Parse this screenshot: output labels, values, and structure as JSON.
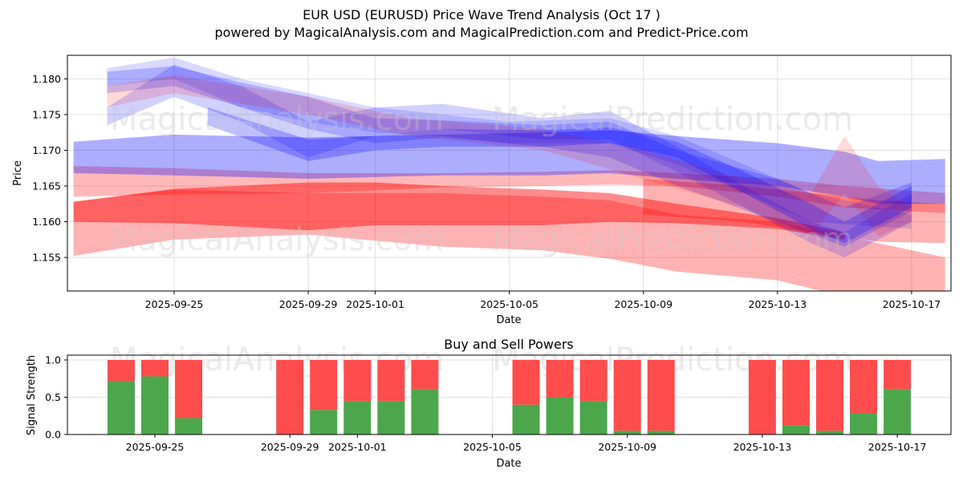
{
  "header": {
    "title": "EUR USD (EURUSD) Price Wave Trend Analysis (Oct 17 )",
    "subtitle": "powered by MagicalAnalysis.com and MagicalPrediction.com and Predict-Price.com"
  },
  "watermarks": [
    "MagicalAnalysis.com",
    "MagicalPrediction.com"
  ],
  "colors": {
    "buy": "#4ca64c",
    "sell": "#ff4c4c",
    "bullish_band": "#0000ff",
    "bearish_band": "#ff0000"
  },
  "chart_data": [
    {
      "type": "area",
      "title": "",
      "xlabel": "Date",
      "ylabel": "Price",
      "ylim": [
        1.1503,
        1.1833
      ],
      "xlim": [
        "2025-09-21",
        "2025-10-18"
      ],
      "grid": true,
      "x_ticks": [
        "2025-09-25",
        "2025-09-29",
        "2025-10-01",
        "2025-10-05",
        "2025-10-09",
        "2025-10-13",
        "2025-10-17"
      ],
      "y_ticks": [
        "1.155",
        "1.160",
        "1.165",
        "1.170",
        "1.175",
        "1.180"
      ],
      "bands": [
        {
          "name": "red-wide-low",
          "color": "red",
          "opacity": 0.3,
          "x": [
            "2025-09-22",
            "2025-09-25",
            "2025-09-29",
            "2025-10-03",
            "2025-10-06",
            "2025-10-08",
            "2025-10-10",
            "2025-10-13",
            "2025-10-15",
            "2025-10-18"
          ],
          "upper": [
            1.1628,
            1.1645,
            1.164,
            1.164,
            1.1635,
            1.163,
            1.161,
            1.16,
            1.158,
            1.155
          ],
          "lower": [
            1.1552,
            1.1575,
            1.1582,
            1.1565,
            1.156,
            1.1548,
            1.153,
            1.1518,
            1.1495,
            1.147
          ]
        },
        {
          "name": "red-main",
          "color": "red",
          "opacity": 0.45,
          "x": [
            "2025-09-22",
            "2025-09-25",
            "2025-09-29",
            "2025-10-01",
            "2025-10-03",
            "2025-10-06",
            "2025-10-08",
            "2025-10-10",
            "2025-10-13",
            "2025-10-15"
          ],
          "upper": [
            1.1628,
            1.1646,
            1.1655,
            1.1655,
            1.165,
            1.1645,
            1.164,
            1.1625,
            1.1605,
            1.1585
          ],
          "lower": [
            1.16,
            1.1598,
            1.1588,
            1.1595,
            1.1595,
            1.1595,
            1.16,
            1.1598,
            1.159,
            1.1575
          ]
        },
        {
          "name": "red-right-low",
          "color": "red",
          "opacity": 0.3,
          "x": [
            "2025-10-09",
            "2025-10-12",
            "2025-10-14",
            "2025-10-16",
            "2025-10-18"
          ],
          "upper": [
            1.166,
            1.165,
            1.164,
            1.163,
            1.1625
          ],
          "lower": [
            1.161,
            1.16,
            1.1585,
            1.1572,
            1.157
          ]
        },
        {
          "name": "purple-band",
          "color": "red",
          "opacity": 0.28,
          "x": [
            "2025-09-22",
            "2025-09-25",
            "2025-09-29",
            "2025-10-03",
            "2025-10-06",
            "2025-10-08",
            "2025-10-10",
            "2025-10-13",
            "2025-10-15",
            "2025-10-18"
          ],
          "upper": [
            1.1678,
            1.1675,
            1.1668,
            1.1668,
            1.167,
            1.1672,
            1.1668,
            1.166,
            1.165,
            1.164
          ],
          "lower": [
            1.1635,
            1.1638,
            1.164,
            1.1648,
            1.165,
            1.1652,
            1.165,
            1.1635,
            1.162,
            1.1612
          ]
        },
        {
          "name": "blue-wide",
          "color": "blue",
          "opacity": 0.32,
          "x": [
            "2025-09-22",
            "2025-09-25",
            "2025-09-29",
            "2025-10-03",
            "2025-10-06",
            "2025-10-08",
            "2025-10-10",
            "2025-10-13",
            "2025-10-15",
            "2025-10-16",
            "2025-10-18"
          ],
          "upper": [
            1.1712,
            1.1722,
            1.1718,
            1.1722,
            1.1725,
            1.1728,
            1.172,
            1.171,
            1.1698,
            1.1685,
            1.1688
          ],
          "lower": [
            1.1668,
            1.1665,
            1.166,
            1.1665,
            1.1665,
            1.1668,
            1.166,
            1.165,
            1.1635,
            1.1625,
            1.1625
          ]
        },
        {
          "name": "blue-top-1",
          "color": "blue",
          "opacity": 0.2,
          "x": [
            "2025-09-23",
            "2025-09-25",
            "2025-09-27",
            "2025-09-29",
            "2025-10-01",
            "2025-10-03",
            "2025-10-06",
            "2025-10-08",
            "2025-10-10",
            "2025-10-13",
            "2025-10-15",
            "2025-10-17"
          ],
          "upper": [
            1.181,
            1.1818,
            1.1795,
            1.1775,
            1.1745,
            1.1742,
            1.1735,
            1.174,
            1.17,
            1.166,
            1.162,
            1.1655
          ],
          "lower": [
            1.178,
            1.179,
            1.176,
            1.173,
            1.171,
            1.1718,
            1.1705,
            1.169,
            1.165,
            1.16,
            1.1565,
            1.1615
          ]
        },
        {
          "name": "blue-top-2",
          "color": "blue",
          "opacity": 0.18,
          "x": [
            "2025-09-23",
            "2025-09-25",
            "2025-09-27",
            "2025-09-29",
            "2025-10-01",
            "2025-10-03",
            "2025-10-06",
            "2025-10-08",
            "2025-10-10",
            "2025-10-12",
            "2025-10-14",
            "2025-10-15",
            "2025-10-17"
          ],
          "upper": [
            1.176,
            1.182,
            1.179,
            1.174,
            1.176,
            1.1765,
            1.1745,
            1.1755,
            1.1705,
            1.165,
            1.16,
            1.1585,
            1.164
          ],
          "lower": [
            1.1735,
            1.1775,
            1.174,
            1.169,
            1.172,
            1.173,
            1.1715,
            1.1715,
            1.167,
            1.162,
            1.157,
            1.155,
            1.16
          ]
        },
        {
          "name": "blue-top-3",
          "color": "blue",
          "opacity": 0.15,
          "x": [
            "2025-09-23",
            "2025-09-25",
            "2025-09-27",
            "2025-09-29",
            "2025-10-01",
            "2025-10-03",
            "2025-10-05",
            "2025-10-08",
            "2025-10-10",
            "2025-10-12",
            "2025-10-14",
            "2025-10-17"
          ],
          "upper": [
            1.1815,
            1.183,
            1.18,
            1.178,
            1.176,
            1.175,
            1.174,
            1.1745,
            1.172,
            1.168,
            1.164,
            1.161
          ],
          "lower": [
            1.179,
            1.18,
            1.176,
            1.174,
            1.1725,
            1.172,
            1.171,
            1.171,
            1.168,
            1.164,
            1.16,
            1.159
          ]
        },
        {
          "name": "pink-top",
          "color": "red",
          "opacity": 0.15,
          "x": [
            "2025-09-23",
            "2025-09-25",
            "2025-09-29",
            "2025-10-02",
            "2025-10-06",
            "2025-10-09",
            "2025-10-12",
            "2025-10-14",
            "2025-10-15",
            "2025-10-16",
            "2025-10-17"
          ],
          "upper": [
            1.179,
            1.1805,
            1.1775,
            1.1745,
            1.173,
            1.17,
            1.166,
            1.164,
            1.172,
            1.165,
            1.162
          ],
          "lower": [
            1.176,
            1.178,
            1.175,
            1.172,
            1.17,
            1.166,
            1.162,
            1.158,
            1.164,
            1.158,
            1.16
          ]
        },
        {
          "name": "blue-mid-dark",
          "color": "blue",
          "opacity": 0.25,
          "x": [
            "2025-09-26",
            "2025-09-29",
            "2025-10-01",
            "2025-10-03",
            "2025-10-06",
            "2025-10-08",
            "2025-10-10",
            "2025-10-12",
            "2025-10-14",
            "2025-10-15",
            "2025-10-17"
          ],
          "upper": [
            1.176,
            1.1715,
            1.172,
            1.173,
            1.1728,
            1.1732,
            1.1712,
            1.167,
            1.1625,
            1.16,
            1.165
          ],
          "lower": [
            1.1735,
            1.1685,
            1.17,
            1.1705,
            1.1705,
            1.171,
            1.169,
            1.164,
            1.159,
            1.157,
            1.162
          ]
        }
      ]
    },
    {
      "type": "bar",
      "title": "Buy and Sell Powers",
      "xlabel": "Date",
      "ylabel": "Signal Strength",
      "ylim": [
        0,
        1.05
      ],
      "grid": true,
      "x_ticks": [
        "2025-09-25",
        "2025-09-29",
        "2025-10-01",
        "2025-10-05",
        "2025-10-09",
        "2025-10-13",
        "2025-10-17"
      ],
      "y_ticks": [
        "0.0",
        "0.5",
        "1.0"
      ],
      "categories": [
        "2025-09-24",
        "2025-09-25",
        "2025-09-26",
        "2025-09-29",
        "2025-09-30",
        "2025-10-01",
        "2025-10-02",
        "2025-10-03",
        "2025-10-06",
        "2025-10-07",
        "2025-10-08",
        "2025-10-09",
        "2025-10-10",
        "2025-10-13",
        "2025-10-14",
        "2025-10-15",
        "2025-10-16",
        "2025-10-17"
      ],
      "series": [
        {
          "name": "Buy",
          "values": [
            0.72,
            0.78,
            0.22,
            0.0,
            0.33,
            0.45,
            0.45,
            0.61,
            0.4,
            0.5,
            0.45,
            0.05,
            0.05,
            0.0,
            0.12,
            0.05,
            0.28,
            0.61
          ]
        },
        {
          "name": "Sell",
          "values": [
            0.28,
            0.22,
            0.78,
            1.0,
            0.67,
            0.55,
            0.55,
            0.39,
            0.6,
            0.5,
            0.55,
            0.95,
            0.95,
            1.0,
            0.88,
            0.95,
            0.72,
            0.39
          ]
        }
      ]
    }
  ]
}
